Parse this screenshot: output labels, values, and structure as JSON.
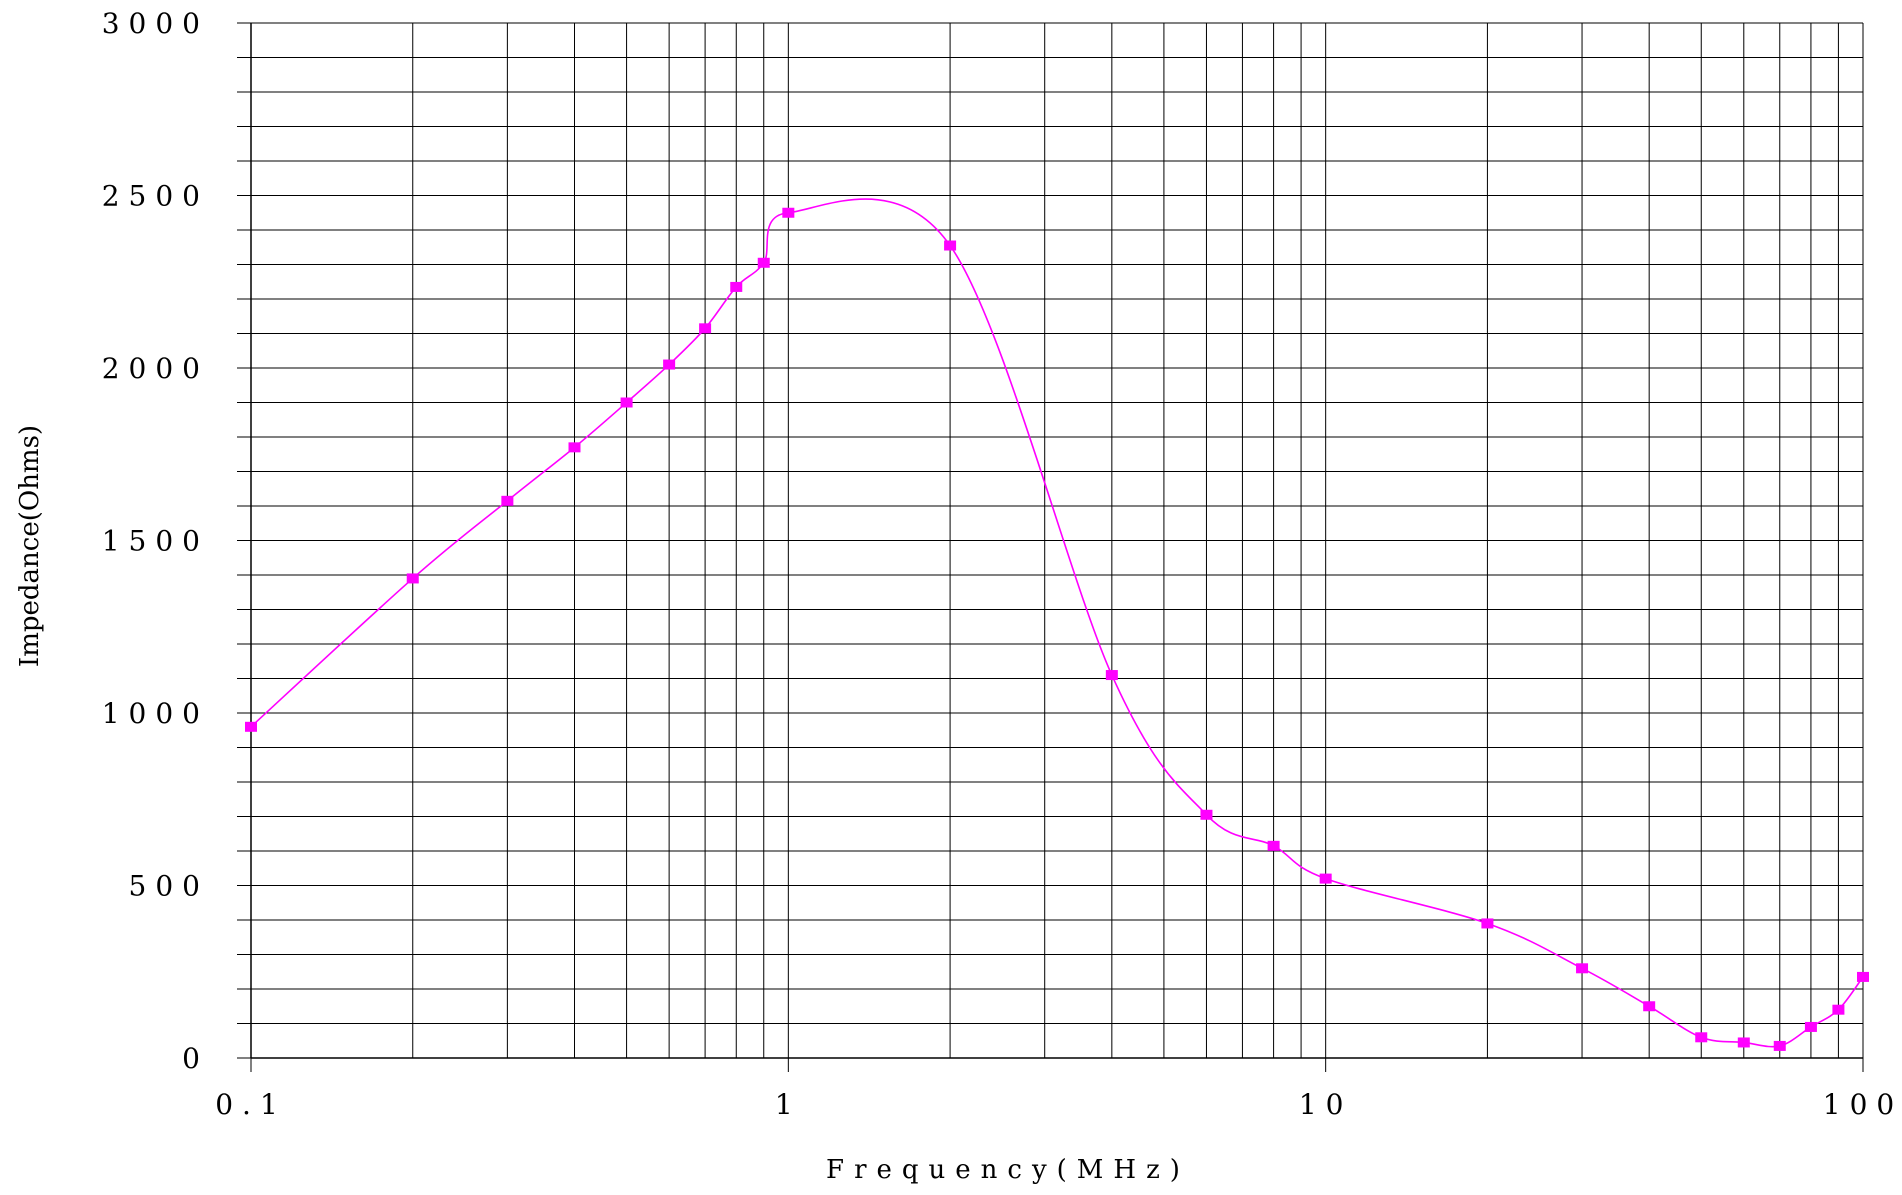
{
  "chart_data": {
    "type": "line",
    "xlabel": "Frequency(MHz)",
    "ylabel": "Impedance(Ohms)",
    "x_scale": "log",
    "xlim": [
      0.1,
      100
    ],
    "ylim": [
      0,
      3000
    ],
    "x_ticks": [
      {
        "value": 0.1,
        "label": "0.1"
      },
      {
        "value": 1,
        "label": "1"
      },
      {
        "value": 10,
        "label": "10"
      },
      {
        "value": 100,
        "label": "100"
      }
    ],
    "y_ticks": [
      {
        "value": 0,
        "label": "0"
      },
      {
        "value": 500,
        "label": "500"
      },
      {
        "value": 1000,
        "label": "1000"
      },
      {
        "value": 1500,
        "label": "1500"
      },
      {
        "value": 2000,
        "label": "2000"
      },
      {
        "value": 2500,
        "label": "2500"
      },
      {
        "value": 3000,
        "label": "3000"
      }
    ],
    "y_minor_step": 100,
    "grid": true,
    "series": [
      {
        "color": "#ff00ff",
        "x": [
          0.1,
          0.2,
          0.3,
          0.4,
          0.5,
          0.6,
          0.7,
          0.8,
          0.9,
          1,
          2,
          4,
          6,
          8,
          10,
          20,
          30,
          40,
          50,
          60,
          70,
          80,
          90,
          100
        ],
        "y": [
          960,
          1390,
          1615,
          1770,
          1900,
          2010,
          2115,
          2235,
          2305,
          2450,
          2355,
          1110,
          705,
          615,
          520,
          390,
          260,
          150,
          60,
          45,
          35,
          90,
          140,
          235
        ]
      }
    ]
  }
}
